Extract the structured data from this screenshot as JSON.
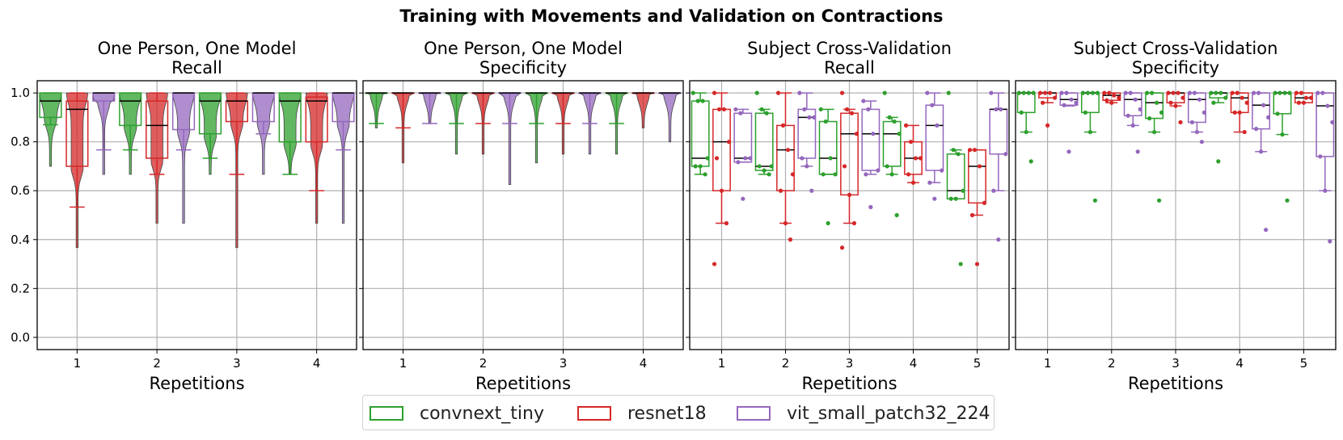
{
  "figure_title": "Training with Movements and Validation on Contractions",
  "colors": {
    "convnext_tiny": "#2ca02c",
    "resnet18": "#d62728",
    "vit_small_patch32_224": "#9467bd"
  },
  "legend": [
    {
      "label": "convnext_tiny",
      "color": "#2ca02c"
    },
    {
      "label": "resnet18",
      "color": "#d62728"
    },
    {
      "label": "vit_small_patch32_224",
      "color": "#9467bd"
    }
  ],
  "chart_data": [
    {
      "type": "box+violin",
      "title_line1": "One Person, One Model",
      "title_line2": "Recall",
      "xlabel": "Repetitions",
      "ylim": [
        -0.05,
        1.05
      ],
      "y_ticks": [
        "0.0",
        "0.2",
        "0.4",
        "0.6",
        "0.8",
        "1.0"
      ],
      "categories": [
        "1",
        "2",
        "3",
        "4"
      ],
      "series": [
        {
          "name": "convnext_tiny",
          "boxes": [
            {
              "q1": 0.9,
              "median": 0.967,
              "q3": 1.0,
              "whislo": 0.87,
              "whishi": 1.0,
              "vmin": 0.7,
              "vmax": 1.0
            },
            {
              "q1": 0.867,
              "median": 0.967,
              "q3": 1.0,
              "whislo": 0.767,
              "whishi": 1.0,
              "vmin": 0.667,
              "vmax": 1.0
            },
            {
              "q1": 0.833,
              "median": 0.967,
              "q3": 1.0,
              "whislo": 0.733,
              "whishi": 1.0,
              "vmin": 0.667,
              "vmax": 1.0
            },
            {
              "q1": 0.8,
              "median": 0.967,
              "q3": 1.0,
              "whislo": 0.667,
              "whishi": 1.0,
              "vmin": 0.667,
              "vmax": 1.0
            }
          ]
        },
        {
          "name": "resnet18",
          "boxes": [
            {
              "q1": 0.7,
              "median": 0.933,
              "q3": 0.967,
              "whislo": 0.533,
              "whishi": 1.0,
              "vmin": 0.367,
              "vmax": 1.0
            },
            {
              "q1": 0.733,
              "median": 0.867,
              "q3": 0.967,
              "whislo": 0.667,
              "whishi": 1.0,
              "vmin": 0.467,
              "vmax": 1.0
            },
            {
              "q1": 0.883,
              "median": 0.967,
              "q3": 0.967,
              "whislo": 0.667,
              "whishi": 1.0,
              "vmin": 0.367,
              "vmax": 1.0
            },
            {
              "q1": 0.8,
              "median": 0.967,
              "q3": 0.983,
              "whislo": 0.6,
              "whishi": 1.0,
              "vmin": 0.467,
              "vmax": 1.0
            }
          ]
        },
        {
          "name": "vit_small_patch32_224",
          "boxes": [
            {
              "q1": 0.967,
              "median": 1.0,
              "q3": 1.0,
              "whislo": 0.767,
              "whishi": 1.0,
              "vmin": 0.667,
              "vmax": 1.0
            },
            {
              "q1": 0.85,
              "median": 1.0,
              "q3": 1.0,
              "whislo": 0.767,
              "whishi": 1.0,
              "vmin": 0.467,
              "vmax": 1.0
            },
            {
              "q1": 0.883,
              "median": 1.0,
              "q3": 1.0,
              "whislo": 0.833,
              "whishi": 1.0,
              "vmin": 0.667,
              "vmax": 1.0
            },
            {
              "q1": 0.883,
              "median": 1.0,
              "q3": 1.0,
              "whislo": 0.767,
              "whishi": 1.0,
              "vmin": 0.467,
              "vmax": 1.0
            }
          ]
        }
      ]
    },
    {
      "type": "box+violin",
      "title_line1": "One Person, One Model",
      "title_line2": "Specificity",
      "xlabel": "Repetitions",
      "ylim": [
        -0.05,
        1.05
      ],
      "categories": [
        "1",
        "2",
        "3",
        "4"
      ],
      "series": [
        {
          "name": "convnext_tiny",
          "boxes": [
            {
              "q1": 1.0,
              "median": 1.0,
              "q3": 1.0,
              "whislo": 0.875,
              "whishi": 1.0,
              "vmin": 0.857,
              "vmax": 1.0
            },
            {
              "q1": 1.0,
              "median": 1.0,
              "q3": 1.0,
              "whislo": 0.875,
              "whishi": 1.0,
              "vmin": 0.75,
              "vmax": 1.0
            },
            {
              "q1": 1.0,
              "median": 1.0,
              "q3": 1.0,
              "whislo": 0.875,
              "whishi": 1.0,
              "vmin": 0.714,
              "vmax": 1.0
            },
            {
              "q1": 1.0,
              "median": 1.0,
              "q3": 1.0,
              "whislo": 0.875,
              "whishi": 1.0,
              "vmin": 0.75,
              "vmax": 1.0
            }
          ]
        },
        {
          "name": "resnet18",
          "boxes": [
            {
              "q1": 1.0,
              "median": 1.0,
              "q3": 1.0,
              "whislo": 0.857,
              "whishi": 1.0,
              "vmin": 0.714,
              "vmax": 1.0
            },
            {
              "q1": 1.0,
              "median": 1.0,
              "q3": 1.0,
              "whislo": 0.875,
              "whishi": 1.0,
              "vmin": 0.75,
              "vmax": 1.0
            },
            {
              "q1": 1.0,
              "median": 1.0,
              "q3": 1.0,
              "whislo": 0.875,
              "whishi": 1.0,
              "vmin": 0.75,
              "vmax": 1.0
            },
            {
              "q1": 1.0,
              "median": 1.0,
              "q3": 1.0,
              "whislo": 1.0,
              "whishi": 1.0,
              "vmin": 0.857,
              "vmax": 1.0
            }
          ]
        },
        {
          "name": "vit_small_patch32_224",
          "boxes": [
            {
              "q1": 1.0,
              "median": 1.0,
              "q3": 1.0,
              "whislo": 0.875,
              "whishi": 1.0,
              "vmin": 0.875,
              "vmax": 1.0
            },
            {
              "q1": 1.0,
              "median": 1.0,
              "q3": 1.0,
              "whislo": 0.875,
              "whishi": 1.0,
              "vmin": 0.625,
              "vmax": 1.0
            },
            {
              "q1": 1.0,
              "median": 1.0,
              "q3": 1.0,
              "whislo": 0.875,
              "whishi": 1.0,
              "vmin": 0.75,
              "vmax": 1.0
            },
            {
              "q1": 1.0,
              "median": 1.0,
              "q3": 1.0,
              "whislo": 1.0,
              "whishi": 1.0,
              "vmin": 0.8,
              "vmax": 1.0
            }
          ]
        }
      ]
    },
    {
      "type": "box+strip",
      "title_line1": "Subject Cross-Validation",
      "title_line2": "Recall",
      "xlabel": "Repetitions",
      "ylim": [
        -0.05,
        1.05
      ],
      "categories": [
        "1",
        "2",
        "3",
        "4",
        "5"
      ],
      "series": [
        {
          "name": "convnext_tiny",
          "boxes": [
            {
              "q1": 0.7,
              "median": 0.733,
              "q3": 0.967,
              "whislo": 0.667,
              "whishi": 1.0,
              "points": [
                1.0,
                0.967,
                0.967,
                0.733,
                0.7,
                0.7,
                0.667
              ]
            },
            {
              "q1": 0.683,
              "median": 0.7,
              "q3": 0.917,
              "whislo": 0.667,
              "whishi": 0.933,
              "points": [
                1.0,
                0.933,
                0.917,
                0.7,
                0.7,
                0.683,
                0.667
              ]
            },
            {
              "q1": 0.667,
              "median": 0.733,
              "q3": 0.883,
              "whislo": 0.667,
              "whishi": 0.933,
              "points": [
                0.933,
                0.883,
                0.733,
                0.667,
                0.667,
                0.467
              ]
            },
            {
              "q1": 0.7,
              "median": 0.833,
              "q3": 0.883,
              "whislo": 0.667,
              "whishi": 0.9,
              "points": [
                1.0,
                0.9,
                0.883,
                0.833,
                0.7,
                0.667,
                0.5
              ]
            },
            {
              "q1": 0.567,
              "median": 0.6,
              "q3": 0.75,
              "whislo": 0.567,
              "whishi": 0.767,
              "points": [
                1.0,
                0.767,
                0.75,
                0.6,
                0.567,
                0.567,
                0.3
              ]
            }
          ]
        },
        {
          "name": "resnet18",
          "boxes": [
            {
              "q1": 0.6,
              "median": 0.8,
              "q3": 0.933,
              "whislo": 0.467,
              "whishi": 1.0,
              "points": [
                1.0,
                0.933,
                0.933,
                0.8,
                0.733,
                0.6,
                0.467,
                0.3
              ]
            },
            {
              "q1": 0.6,
              "median": 0.767,
              "q3": 0.867,
              "whislo": 0.467,
              "whishi": 1.0,
              "points": [
                1.0,
                0.867,
                0.767,
                0.667,
                0.6,
                0.467,
                0.4
              ]
            },
            {
              "q1": 0.583,
              "median": 0.833,
              "q3": 0.917,
              "whislo": 0.467,
              "whishi": 0.933,
              "points": [
                1.0,
                0.933,
                0.917,
                0.833,
                0.7,
                0.583,
                0.467,
                0.367
              ]
            },
            {
              "q1": 0.667,
              "median": 0.733,
              "q3": 0.8,
              "whislo": 0.633,
              "whishi": 0.867,
              "points": [
                0.867,
                0.8,
                0.733,
                0.733,
                0.667,
                0.633
              ]
            },
            {
              "q1": 0.55,
              "median": 0.7,
              "q3": 0.767,
              "whislo": 0.5,
              "whishi": 0.767,
              "points": [
                0.767,
                0.767,
                0.7,
                0.55,
                0.5,
                0.3
              ]
            }
          ]
        },
        {
          "name": "vit_small_patch32_224",
          "boxes": [
            {
              "q1": 0.717,
              "median": 0.733,
              "q3": 0.917,
              "whislo": 0.717,
              "whishi": 0.933,
              "points": [
                0.933,
                0.917,
                0.733,
                0.733,
                0.717,
                0.567
              ]
            },
            {
              "q1": 0.733,
              "median": 0.9,
              "q3": 0.933,
              "whislo": 0.7,
              "whishi": 1.0,
              "points": [
                1.0,
                0.933,
                0.9,
                0.9,
                0.733,
                0.7,
                0.6
              ]
            },
            {
              "q1": 0.683,
              "median": 0.833,
              "q3": 0.933,
              "whislo": 0.667,
              "whishi": 0.967,
              "points": [
                0.967,
                0.933,
                0.833,
                0.683,
                0.667,
                0.533
              ]
            },
            {
              "q1": 0.683,
              "median": 0.867,
              "q3": 0.95,
              "whislo": 0.633,
              "whishi": 1.0,
              "points": [
                1.0,
                0.95,
                0.867,
                0.683,
                0.633,
                0.567
              ]
            },
            {
              "q1": 0.75,
              "median": 0.933,
              "q3": 0.933,
              "whislo": 0.6,
              "whishi": 1.0,
              "points": [
                1.0,
                0.933,
                0.933,
                0.75,
                0.6,
                0.4
              ]
            }
          ]
        }
      ]
    },
    {
      "type": "box+strip",
      "title_line1": "Subject Cross-Validation",
      "title_line2": "Specificity",
      "xlabel": "Repetitions",
      "ylim": [
        -0.05,
        1.05
      ],
      "categories": [
        "1",
        "2",
        "3",
        "4",
        "5"
      ],
      "series": [
        {
          "name": "convnext_tiny",
          "boxes": [
            {
              "q1": 0.92,
              "median": 1.0,
              "q3": 1.0,
              "whislo": 0.84,
              "whishi": 1.0,
              "points": [
                1.0,
                1.0,
                1.0,
                1.0,
                0.92,
                0.84,
                0.72
              ]
            },
            {
              "q1": 0.92,
              "median": 1.0,
              "q3": 1.0,
              "whislo": 0.84,
              "whishi": 1.0,
              "points": [
                1.0,
                1.0,
                1.0,
                1.0,
                0.92,
                0.84,
                0.56
              ]
            },
            {
              "q1": 0.896,
              "median": 0.96,
              "q3": 1.0,
              "whislo": 0.84,
              "whishi": 1.0,
              "points": [
                1.0,
                1.0,
                0.96,
                0.92,
                0.896,
                0.84,
                0.56
              ]
            },
            {
              "q1": 0.98,
              "median": 1.0,
              "q3": 1.0,
              "whislo": 0.96,
              "whishi": 1.0,
              "points": [
                1.0,
                1.0,
                1.0,
                0.98,
                0.96,
                0.72
              ]
            },
            {
              "q1": 0.915,
              "median": 1.0,
              "q3": 1.0,
              "whislo": 0.83,
              "whishi": 1.0,
              "points": [
                1.0,
                1.0,
                1.0,
                1.0,
                0.915,
                0.83,
                0.56
              ]
            }
          ]
        },
        {
          "name": "resnet18",
          "boxes": [
            {
              "q1": 0.98,
              "median": 1.0,
              "q3": 1.0,
              "whislo": 0.96,
              "whishi": 1.0,
              "points": [
                1.0,
                1.0,
                1.0,
                0.98,
                0.96,
                0.867
              ]
            },
            {
              "q1": 0.97,
              "median": 0.99,
              "q3": 1.0,
              "whislo": 0.96,
              "whishi": 1.0,
              "points": [
                1.0,
                1.0,
                0.99,
                0.98,
                0.97,
                0.96
              ]
            },
            {
              "q1": 0.96,
              "median": 1.0,
              "q3": 1.0,
              "whislo": 0.947,
              "whishi": 1.0,
              "points": [
                1.0,
                1.0,
                1.0,
                0.98,
                0.96,
                0.947,
                0.88
              ]
            },
            {
              "q1": 0.92,
              "median": 0.98,
              "q3": 1.0,
              "whislo": 0.84,
              "whishi": 1.0,
              "points": [
                1.0,
                1.0,
                0.98,
                0.96,
                0.92,
                0.92,
                0.84
              ]
            },
            {
              "q1": 0.96,
              "median": 0.98,
              "q3": 1.0,
              "whislo": 0.96,
              "whishi": 1.0,
              "points": [
                1.0,
                1.0,
                0.98,
                0.98,
                0.96,
                0.96
              ]
            }
          ]
        },
        {
          "name": "vit_small_patch32_224",
          "boxes": [
            {
              "q1": 0.95,
              "median": 0.973,
              "q3": 1.0,
              "whislo": 0.947,
              "whishi": 1.0,
              "points": [
                1.0,
                1.0,
                0.973,
                0.96,
                0.95,
                0.76
              ]
            },
            {
              "q1": 0.907,
              "median": 0.973,
              "q3": 1.0,
              "whislo": 0.867,
              "whishi": 1.0,
              "points": [
                1.0,
                1.0,
                0.973,
                0.933,
                0.907,
                0.867,
                0.76
              ]
            },
            {
              "q1": 0.88,
              "median": 0.973,
              "q3": 1.0,
              "whislo": 0.84,
              "whishi": 1.0,
              "points": [
                1.0,
                1.0,
                0.973,
                0.92,
                0.88,
                0.84,
                0.8
              ]
            },
            {
              "q1": 0.853,
              "median": 0.95,
              "q3": 1.0,
              "whislo": 0.76,
              "whishi": 1.0,
              "points": [
                1.0,
                1.0,
                0.95,
                0.9,
                0.853,
                0.76,
                0.44
              ]
            },
            {
              "q1": 0.74,
              "median": 0.947,
              "q3": 1.0,
              "whislo": 0.6,
              "whishi": 1.0,
              "points": [
                1.0,
                1.0,
                0.947,
                0.88,
                0.74,
                0.6,
                0.393
              ]
            }
          ]
        }
      ]
    }
  ]
}
